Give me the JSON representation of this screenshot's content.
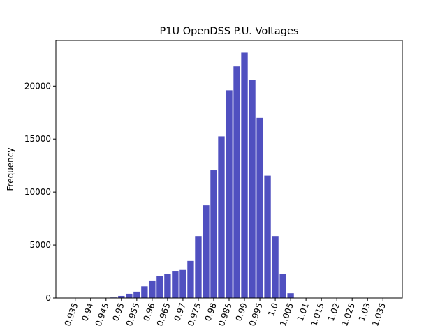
{
  "chart_data": {
    "type": "bar",
    "title": "P1U OpenDSS P.U. Voltages",
    "xlabel": "",
    "ylabel": "Frequency",
    "bar_color": "#5050c0",
    "categories": [
      "0.935",
      "0.94",
      "0.945",
      "0.95",
      "0.955",
      "0.96",
      "0.965",
      "0.97",
      "0.975",
      "0.98",
      "0.985",
      "0.99",
      "0.995",
      "1.0",
      "1.005",
      "1.01",
      "1.015",
      "1.02",
      "1.025",
      "1.03",
      "1.035"
    ],
    "bins": [
      {
        "x": 0.9475,
        "value": 50
      },
      {
        "x": 0.95,
        "value": 200
      },
      {
        "x": 0.9525,
        "value": 400
      },
      {
        "x": 0.955,
        "value": 600
      },
      {
        "x": 0.9575,
        "value": 1100
      },
      {
        "x": 0.96,
        "value": 1650
      },
      {
        "x": 0.9625,
        "value": 2100
      },
      {
        "x": 0.965,
        "value": 2300
      },
      {
        "x": 0.9675,
        "value": 2500
      },
      {
        "x": 0.97,
        "value": 2650
      },
      {
        "x": 0.9725,
        "value": 3500
      },
      {
        "x": 0.975,
        "value": 5850
      },
      {
        "x": 0.9775,
        "value": 8750
      },
      {
        "x": 0.98,
        "value": 12050
      },
      {
        "x": 0.9825,
        "value": 15250
      },
      {
        "x": 0.985,
        "value": 19600
      },
      {
        "x": 0.9875,
        "value": 21850
      },
      {
        "x": 0.99,
        "value": 23150
      },
      {
        "x": 0.9925,
        "value": 20550
      },
      {
        "x": 0.995,
        "value": 17000
      },
      {
        "x": 0.9975,
        "value": 11550
      },
      {
        "x": 1.0,
        "value": 5850
      },
      {
        "x": 1.0025,
        "value": 2250
      },
      {
        "x": 1.005,
        "value": 450
      }
    ],
    "bin_width": 0.0025,
    "xlim": [
      0.9287,
      1.0413
    ],
    "ylim": [
      0,
      24300
    ],
    "y_ticks": [
      0,
      5000,
      10000,
      15000,
      20000
    ],
    "grid": false
  }
}
